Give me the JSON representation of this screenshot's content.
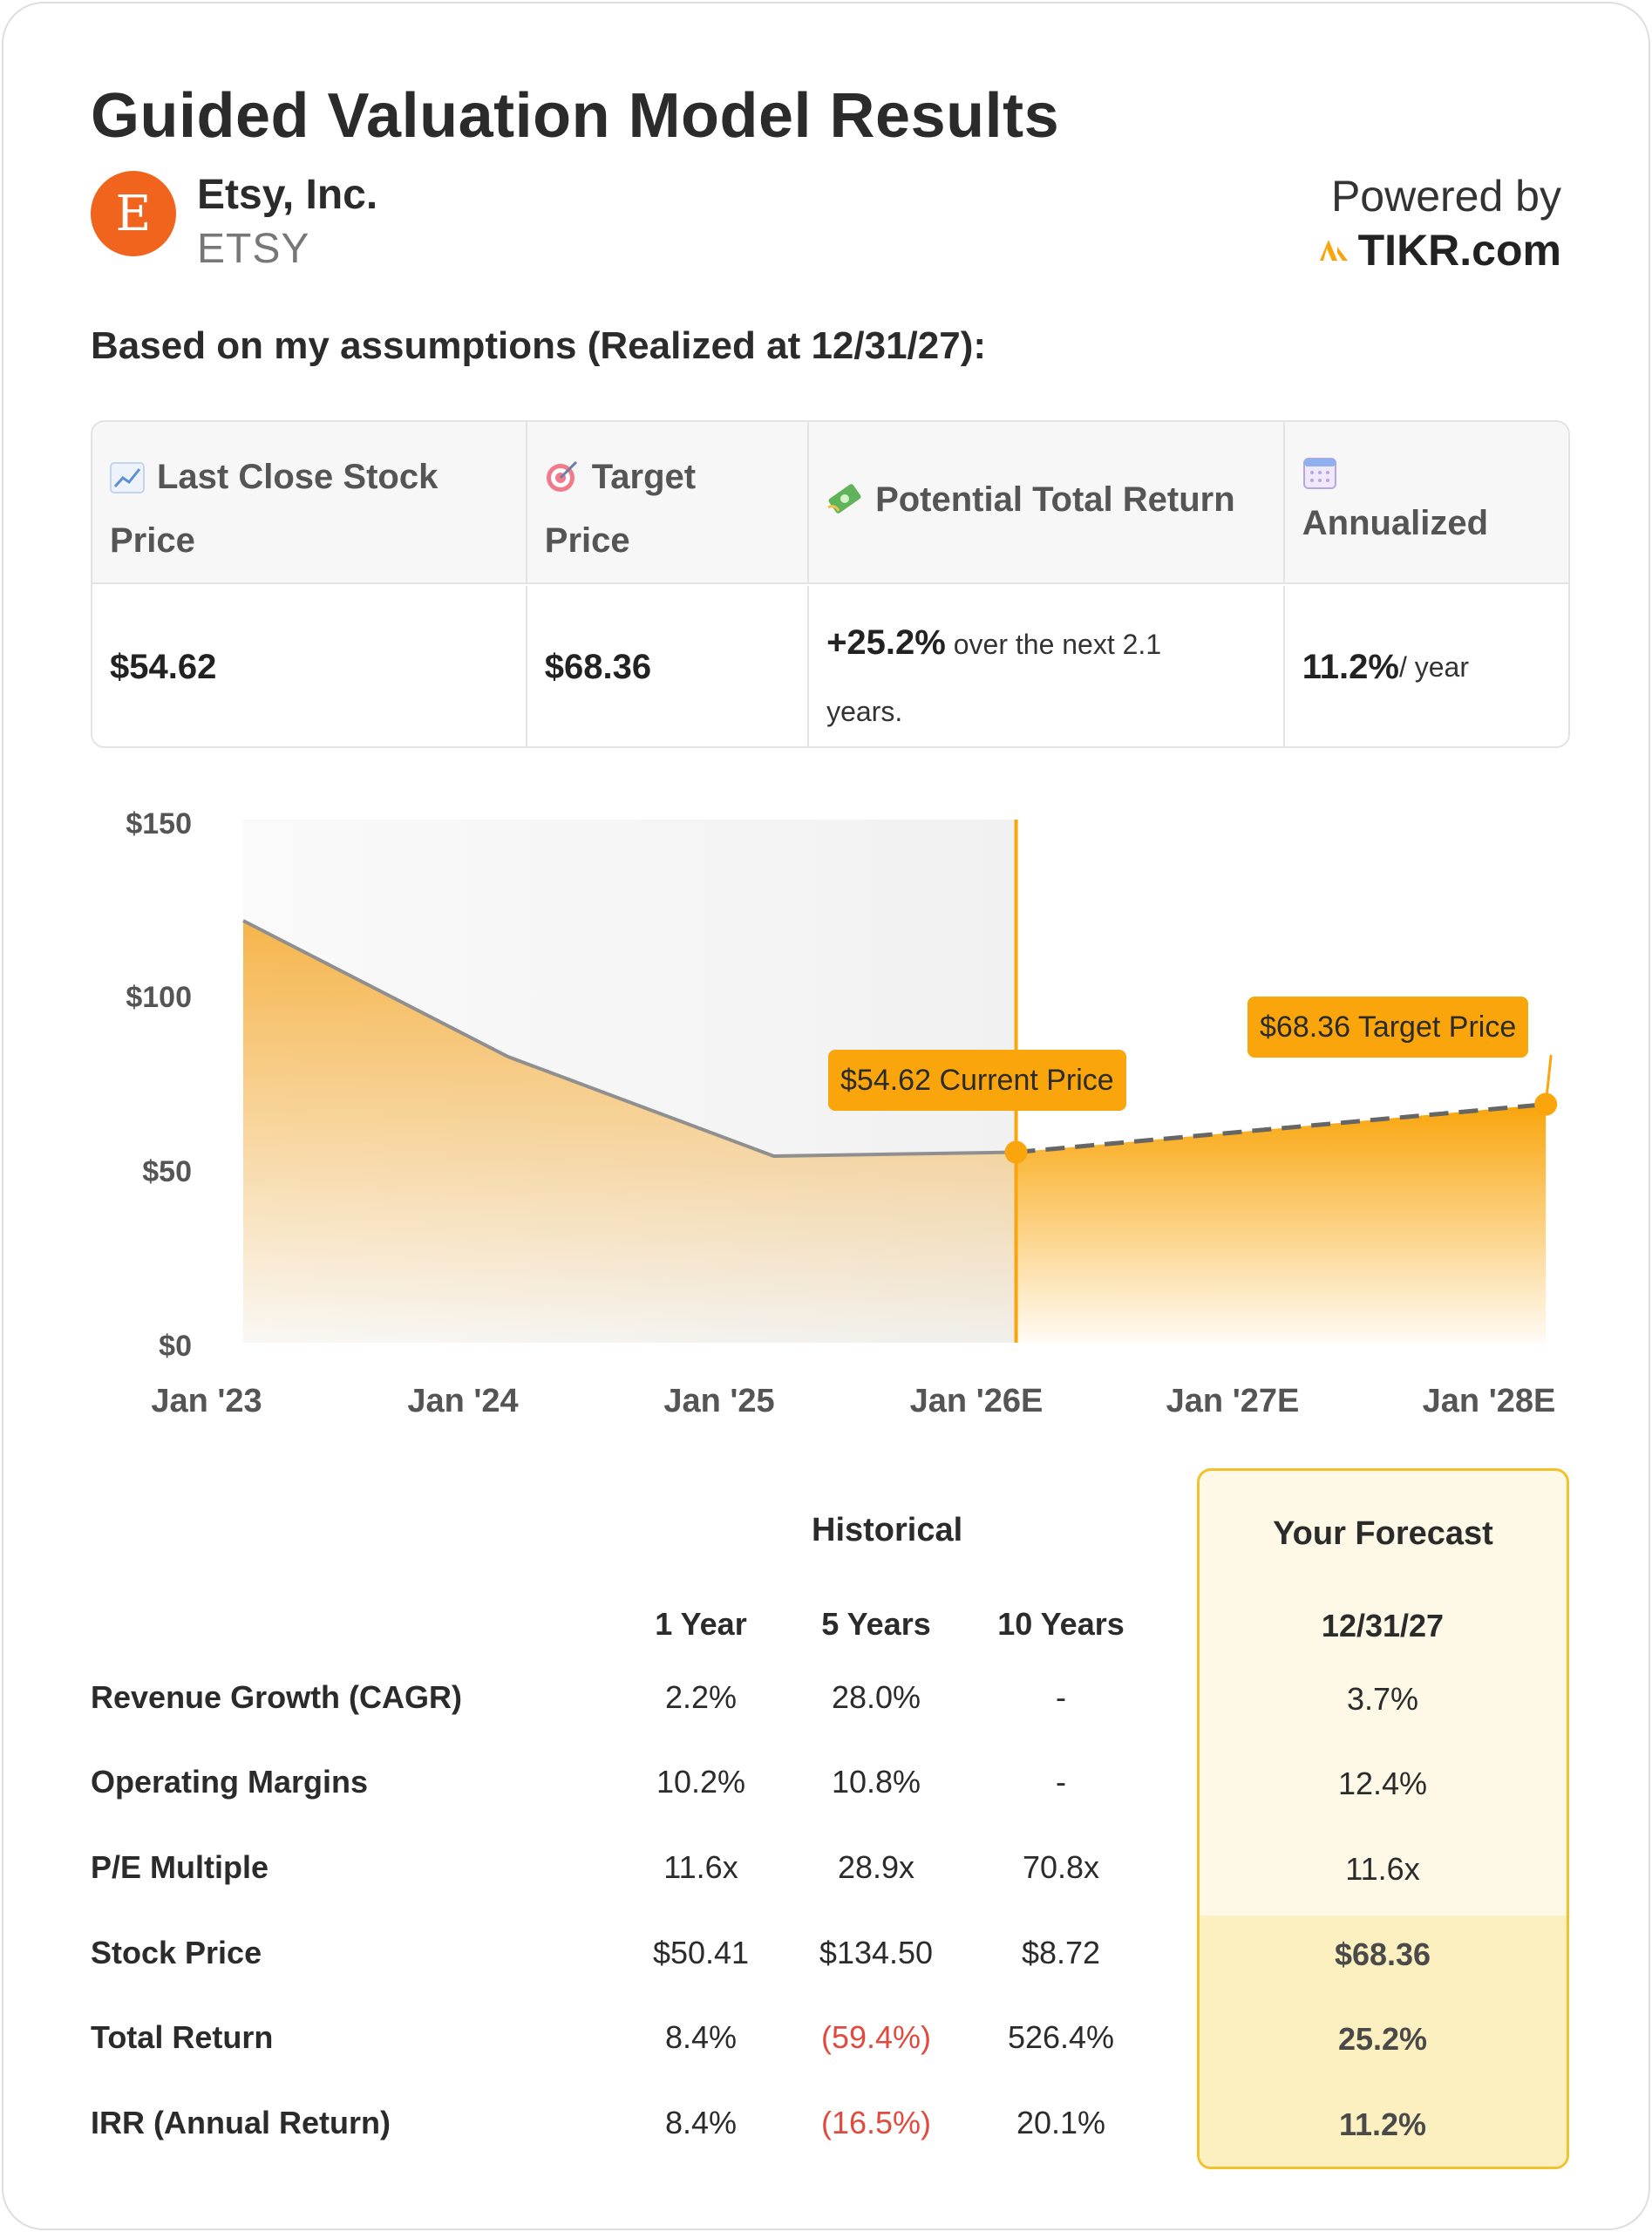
{
  "header": {
    "title": "Guided Valuation Model Results",
    "logo_letter": "E",
    "company": "Etsy, Inc.",
    "ticker": "ETSY",
    "powered_by": "Powered by",
    "provider": "TIKR.com",
    "assumptions": "Based on my assumptions (Realized at 12/31/27):"
  },
  "summary": {
    "col1_line1": "Last Close Stock",
    "col1_line2": "Price",
    "col2_line1": "Target",
    "col2_line2": "Price",
    "col3": "Potential Total Return",
    "col4": "Annualized",
    "last_close": "$54.62",
    "target": "$68.36",
    "return_value": "+25.2%",
    "return_text1": " over the next 2.1",
    "return_text2": "years.",
    "annualized_value": "11.2%",
    "annualized_unit": " / year"
  },
  "chart_data": {
    "type": "area",
    "x": [
      "Jan '23",
      "Jan '24",
      "Jan '25",
      "Jan '26E",
      "Jan '27E",
      "Jan '28E"
    ],
    "y_ticks": [
      "$150",
      "$100",
      "$50",
      "$0"
    ],
    "ylim": [
      0,
      150
    ],
    "historical": [
      {
        "date": "2023-01",
        "price": 121
      },
      {
        "date": "2024-01",
        "price": 82
      },
      {
        "date": "2025-01",
        "price": 53.5
      },
      {
        "date": "2025-12",
        "price": 54.62
      }
    ],
    "forecast": [
      {
        "date": "2025-12",
        "price": 54.62
      },
      {
        "date": "2027-12",
        "price": 68.36
      }
    ],
    "current_label": "$54.62 Current Price",
    "target_label": "$68.36 Target Price",
    "colors": {
      "accent": "#f9a50b",
      "line": "#8f8f8f",
      "historical_bg": "#f3f3f3"
    }
  },
  "metrics": {
    "historical_header": "Historical",
    "forecast_header": "Your Forecast",
    "columns": [
      "1 Year",
      "5 Years",
      "10 Years"
    ],
    "forecast_date": "12/31/27",
    "rows": [
      {
        "label": "Revenue Growth (CAGR)",
        "v1": "2.2%",
        "v5": "28.0%",
        "v10": "-",
        "fc": "3.7%"
      },
      {
        "label": "Operating Margins",
        "v1": "10.2%",
        "v5": "10.8%",
        "v10": "-",
        "fc": "12.4%"
      },
      {
        "label": "P/E Multiple",
        "v1": "11.6x",
        "v5": "28.9x",
        "v10": "70.8x",
        "fc": "11.6x"
      },
      {
        "label": "Stock Price",
        "v1": "$50.41",
        "v5": "$134.50",
        "v10": "$8.72",
        "fc": "$68.36"
      },
      {
        "label": "Total Return",
        "v1": "8.4%",
        "v5": "(59.4%)",
        "v10": "526.4%",
        "fc": "25.2%"
      },
      {
        "label": "IRR (Annual Return)",
        "v1": "8.4%",
        "v5": "(16.5%)",
        "v10": "20.1%",
        "fc": "11.2%"
      }
    ]
  }
}
